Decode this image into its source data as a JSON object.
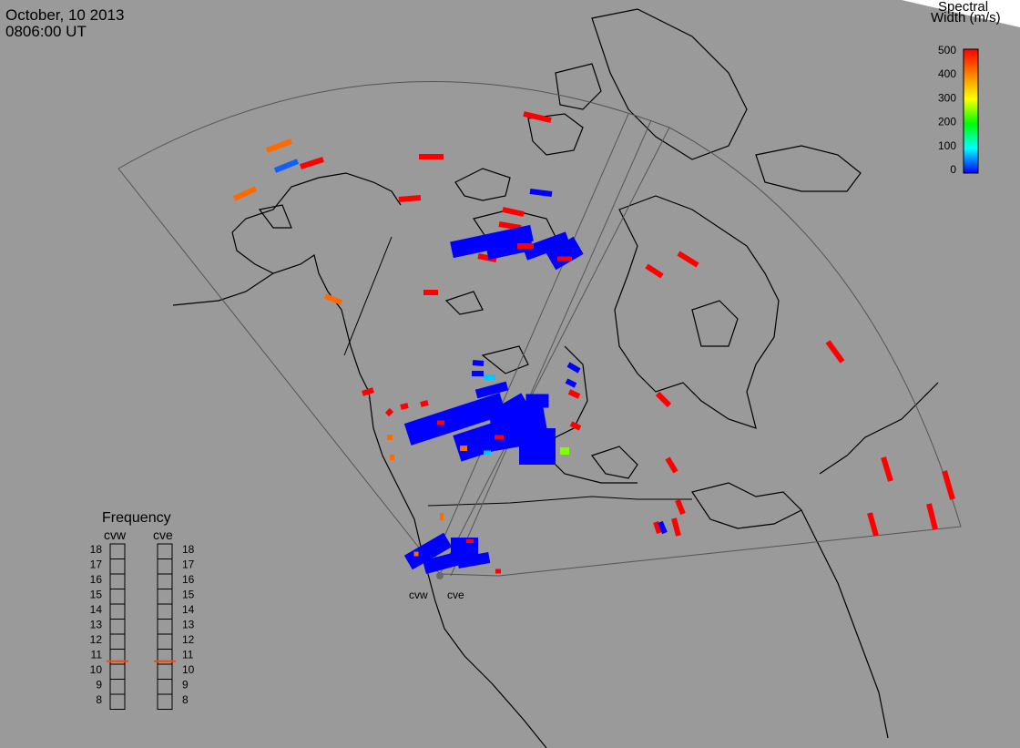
{
  "header": {
    "date": "October, 10 2013",
    "time": "0806:00 UT"
  },
  "colorbar": {
    "title_line1": "Spectral",
    "title_line2": "Width (m/s)",
    "ticks": [
      "500",
      "400",
      "300",
      "200",
      "100",
      "0"
    ],
    "colors": [
      "#ff0000",
      "#ff8000",
      "#ffff00",
      "#00ff00",
      "#00ffff",
      "#0000ff"
    ]
  },
  "frequency_panel": {
    "title": "Frequency",
    "radar_left": "cvw",
    "radar_right": "cve",
    "scale": [
      "18",
      "17",
      "16",
      "15",
      "14",
      "13",
      "12",
      "11",
      "10",
      "9",
      "8"
    ],
    "cvw_value_mhz": 10.7,
    "cve_value_mhz": 10.7,
    "marker_color": "#ff4500"
  },
  "radar_sites": [
    "cvw",
    "cve"
  ],
  "colors": {
    "background": "#9a9a9a",
    "coast": "#000000",
    "fov": "#444444",
    "scatter_low": "#0000ff",
    "scatter_high": "#ff0000"
  }
}
